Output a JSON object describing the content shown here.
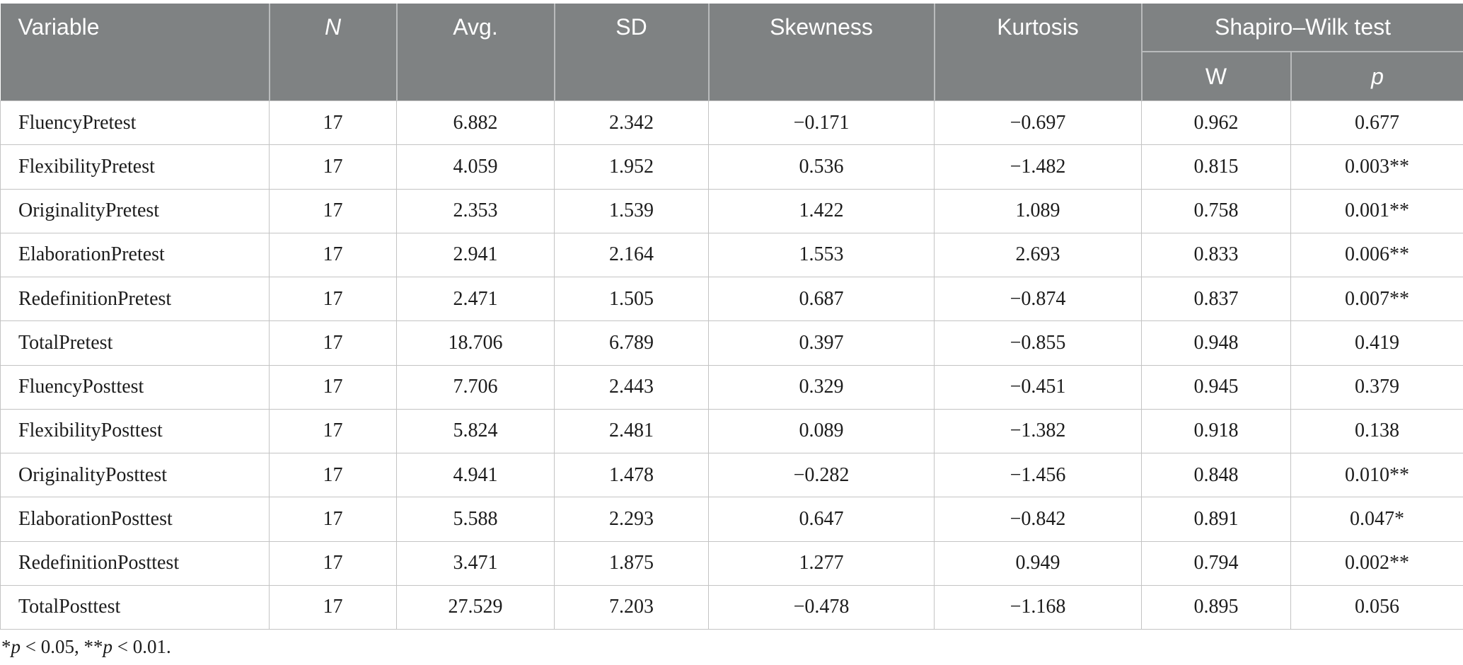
{
  "table": {
    "columns": [
      {
        "label": "Variable",
        "italic": false
      },
      {
        "label": "N",
        "italic": true
      },
      {
        "label": "Avg.",
        "italic": false
      },
      {
        "label": "SD",
        "italic": false
      },
      {
        "label": "Skewness",
        "italic": false
      },
      {
        "label": "Kurtosis",
        "italic": false
      }
    ],
    "group_header": {
      "label": "Shapiro–Wilk test",
      "sub": [
        {
          "label": "W",
          "italic": false
        },
        {
          "label": "p",
          "italic": true
        }
      ]
    },
    "rows": [
      [
        "FluencyPretest",
        "17",
        "6.882",
        "2.342",
        "−0.171",
        "−0.697",
        "0.962",
        "0.677"
      ],
      [
        "FlexibilityPretest",
        "17",
        "4.059",
        "1.952",
        "0.536",
        "−1.482",
        "0.815",
        "0.003**"
      ],
      [
        "OriginalityPretest",
        "17",
        "2.353",
        "1.539",
        "1.422",
        "1.089",
        "0.758",
        "0.001**"
      ],
      [
        "ElaborationPretest",
        "17",
        "2.941",
        "2.164",
        "1.553",
        "2.693",
        "0.833",
        "0.006**"
      ],
      [
        "RedefinitionPretest",
        "17",
        "2.471",
        "1.505",
        "0.687",
        "−0.874",
        "0.837",
        "0.007**"
      ],
      [
        "TotalPretest",
        "17",
        "18.706",
        "6.789",
        "0.397",
        "−0.855",
        "0.948",
        "0.419"
      ],
      [
        "FluencyPosttest",
        "17",
        "7.706",
        "2.443",
        "0.329",
        "−0.451",
        "0.945",
        "0.379"
      ],
      [
        "FlexibilityPosttest",
        "17",
        "5.824",
        "2.481",
        "0.089",
        "−1.382",
        "0.918",
        "0.138"
      ],
      [
        "OriginalityPosttest",
        "17",
        "4.941",
        "1.478",
        "−0.282",
        "−1.456",
        "0.848",
        "0.010**"
      ],
      [
        "ElaborationPosttest",
        "17",
        "5.588",
        "2.293",
        "0.647",
        "−0.842",
        "0.891",
        "0.047*"
      ],
      [
        "RedefinitionPosttest",
        "17",
        "3.471",
        "1.875",
        "1.277",
        "0.949",
        "0.794",
        "0.002**"
      ],
      [
        "TotalPosttest",
        "17",
        "27.529",
        "7.203",
        "−0.478",
        "−1.168",
        "0.895",
        "0.056"
      ]
    ],
    "footnote_segments": [
      {
        "text": "*",
        "italic": false
      },
      {
        "text": "p",
        "italic": true
      },
      {
        "text": " < 0.05, **",
        "italic": false
      },
      {
        "text": "p",
        "italic": true
      },
      {
        "text": " < 0.01.",
        "italic": false
      }
    ]
  },
  "colors": {
    "header_bg": "#7f8283",
    "header_text": "#ffffff",
    "header_divider": "#b9bbbc",
    "body_border": "#c4c4c4",
    "body_text": "#1c1c1c"
  }
}
